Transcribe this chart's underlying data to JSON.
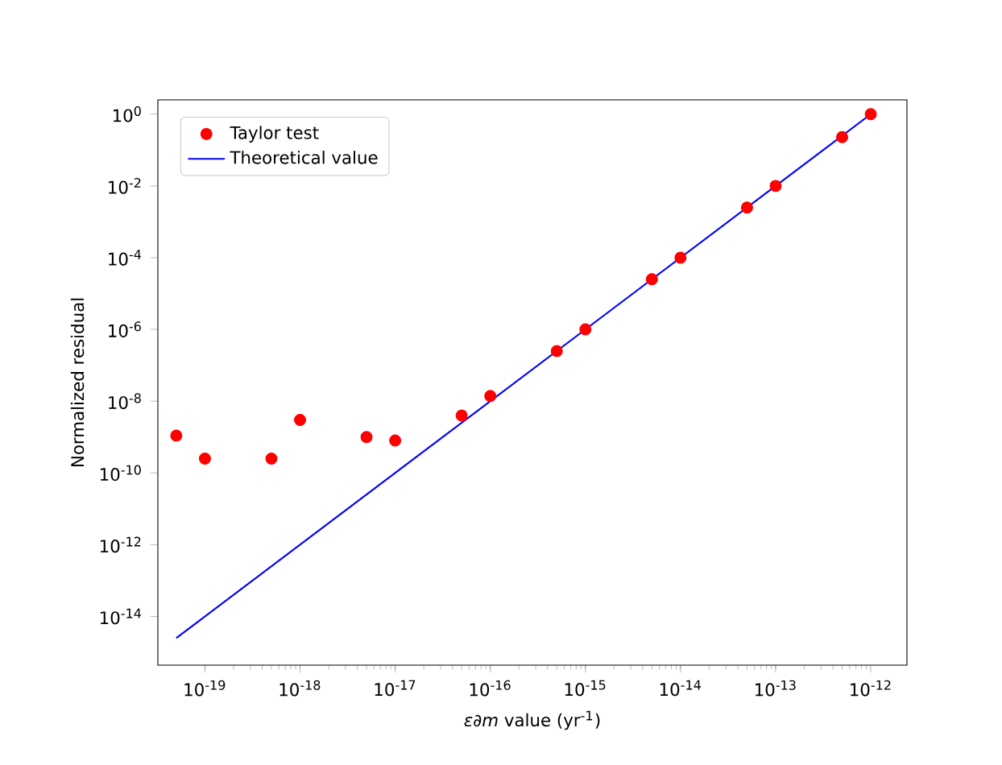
{
  "chart_data": {
    "type": "scatter",
    "xlabel": "*ε∂m* value (yr$^{-1}$)",
    "ylabel": "Normalized residual",
    "log": "xy",
    "legend": "top left",
    "xlim": [
      3.2e-20,
      2.4e-12
    ],
    "ylim": [
      4.4e-16,
      2.5
    ],
    "xticks": [
      {
        "value": 1e-19,
        "label": "10$^{-19}$"
      },
      {
        "value": 1e-18,
        "label": "10$^{-18}$"
      },
      {
        "value": 1e-17,
        "label": "10$^{-17}$"
      },
      {
        "value": 1e-16,
        "label": "10$^{-16}$"
      },
      {
        "value": 1e-15,
        "label": "10$^{-15}$"
      },
      {
        "value": 1e-14,
        "label": "10$^{-14}$"
      },
      {
        "value": 1e-13,
        "label": "10$^{-13}$"
      },
      {
        "value": 1e-12,
        "label": "10$^{-12}$"
      }
    ],
    "yticks": [
      {
        "value": 1e-14,
        "label": "10$^{-14}$"
      },
      {
        "value": 1e-12,
        "label": "10$^{-12}$"
      },
      {
        "value": 1e-10,
        "label": "10$^{-10}$"
      },
      {
        "value": 1e-08,
        "label": "10$^{-8}$"
      },
      {
        "value": 1e-06,
        "label": "10$^{-6}$"
      },
      {
        "value": 0.0001,
        "label": "10$^{-4}$"
      },
      {
        "value": 0.01,
        "label": "10$^{-2}$"
      },
      {
        "value": 1,
        "label": "10$^{0}$"
      }
    ],
    "series": [
      {
        "name": "Taylor test",
        "marker": "circle",
        "color": "#ff0000",
        "x": [
          5e-20,
          1e-19,
          5e-19,
          1e-18,
          5e-18,
          1e-17,
          5e-17,
          1e-16,
          5e-16,
          1e-15,
          5e-15,
          1e-14,
          5e-14,
          1e-13,
          5e-13,
          1e-12
        ],
        "values": [
          1.1e-09,
          2.5e-10,
          2.5e-10,
          3e-09,
          1e-09,
          8e-10,
          4e-09,
          1.4e-08,
          2.5e-07,
          1e-06,
          2.5e-05,
          0.0001,
          0.0025,
          0.01,
          0.23,
          1
        ]
      },
      {
        "name": "Theoretical value",
        "type": "line",
        "marker": "none",
        "line_style": "solid",
        "color": "#0000ff",
        "x": [
          5e-20,
          1e-12
        ],
        "values": [
          2.5e-15,
          1
        ]
      }
    ]
  }
}
